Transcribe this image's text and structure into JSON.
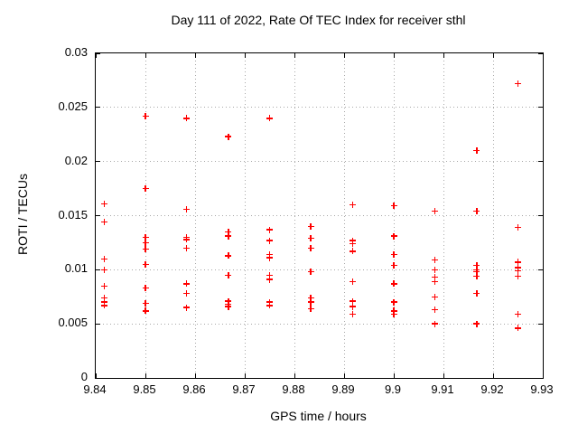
{
  "title": "Day 111 of 2022, Rate Of TEC Index for receiver sthl",
  "colors": {
    "marker": "#ff0000",
    "grid": "#a8a8a8",
    "axis": "#000000",
    "background": "#ffffff"
  },
  "chart_data": {
    "type": "scatter",
    "marker_style": "plus",
    "title": "Day 111 of 2022, Rate Of TEC Index for receiver sthl",
    "xlabel": "GPS time / hours",
    "ylabel": "ROTI / TECUs",
    "xlim": [
      9.84,
      9.93
    ],
    "ylim": [
      0,
      0.03
    ],
    "grid": true,
    "legend": "none",
    "xticks": {
      "values": [
        9.84,
        9.85,
        9.86,
        9.87,
        9.88,
        9.89,
        9.9,
        9.91,
        9.92,
        9.93
      ],
      "labels": [
        "9.84",
        "9.85",
        "9.86",
        "9.87",
        "9.88",
        "9.89",
        "9.9",
        "9.91",
        "9.92",
        "9.93"
      ]
    },
    "yticks": {
      "values": [
        0,
        0.005,
        0.01,
        0.015,
        0.02,
        0.025,
        0.03
      ],
      "labels": [
        "0",
        "0.005",
        "0.01",
        "0.015",
        "0.02",
        "0.025",
        "0.03"
      ]
    },
    "series": [
      {
        "x": 9.8417,
        "values": [
          0.0161,
          0.0144,
          0.011,
          0.01,
          0.0085,
          0.0074,
          0.007,
          0.0067
        ]
      },
      {
        "x": 9.85,
        "values": [
          0.0242,
          0.0175,
          0.013,
          0.0125,
          0.0119,
          0.0105,
          0.0083,
          0.0069,
          0.0062
        ]
      },
      {
        "x": 9.8583,
        "values": [
          0.024,
          0.0156,
          0.013,
          0.0128,
          0.012,
          0.0087,
          0.0078,
          0.0065
        ]
      },
      {
        "x": 9.8667,
        "values": [
          0.0223,
          0.0135,
          0.0131,
          0.0113,
          0.0095,
          0.0071,
          0.0068,
          0.0066
        ]
      },
      {
        "x": 9.875,
        "values": [
          0.024,
          0.0137,
          0.0127,
          0.0114,
          0.0111,
          0.0095,
          0.0091,
          0.007,
          0.0067
        ]
      },
      {
        "x": 9.8833,
        "values": [
          0.014,
          0.0129,
          0.012,
          0.0098,
          0.0074,
          0.007,
          0.0064
        ]
      },
      {
        "x": 9.8917,
        "values": [
          0.016,
          0.0127,
          0.0124,
          0.0117,
          0.0089,
          0.0071,
          0.0066,
          0.0059
        ]
      },
      {
        "x": 9.9,
        "values": [
          0.0159,
          0.0131,
          0.0114,
          0.0104,
          0.0087,
          0.007,
          0.0062,
          0.0059
        ]
      },
      {
        "x": 9.9083,
        "values": [
          0.0154,
          0.0109,
          0.01,
          0.0093,
          0.0089,
          0.0075,
          0.0063,
          0.005
        ]
      },
      {
        "x": 9.9167,
        "values": [
          0.021,
          0.0154,
          0.0104,
          0.01,
          0.0098,
          0.0094,
          0.0078,
          0.005
        ]
      },
      {
        "x": 9.925,
        "values": [
          0.0272,
          0.0139,
          0.0107,
          0.0102,
          0.0099,
          0.0094,
          0.0059,
          0.0046
        ]
      }
    ]
  }
}
